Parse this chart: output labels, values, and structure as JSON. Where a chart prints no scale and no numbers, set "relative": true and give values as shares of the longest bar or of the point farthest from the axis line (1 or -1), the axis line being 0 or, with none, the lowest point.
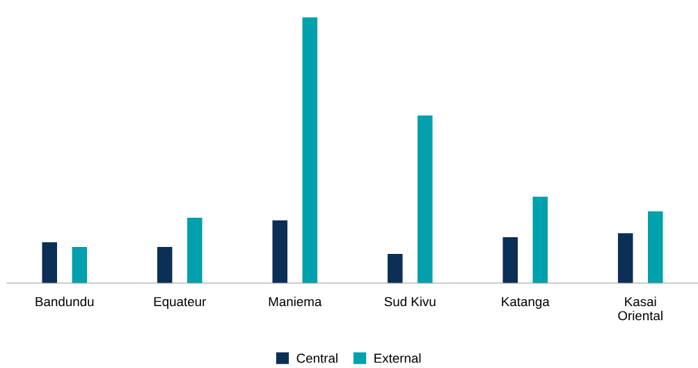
{
  "chart_data": {
    "type": "bar",
    "relative": true,
    "categories": [
      "Bandundu",
      "Equateur",
      "Maniema",
      "Sud Kivu",
      "Katanga",
      "Kasai\nOriental"
    ],
    "series": [
      {
        "name": "Central",
        "color": "#0b2f55",
        "values": [
          0.154,
          0.136,
          0.236,
          0.11,
          0.173,
          0.188
        ]
      },
      {
        "name": "External",
        "color": "#00a0ac",
        "values": [
          0.136,
          0.246,
          1,
          0.631,
          0.325,
          0.27
        ]
      }
    ],
    "legend": "bottom",
    "grid": false
  }
}
